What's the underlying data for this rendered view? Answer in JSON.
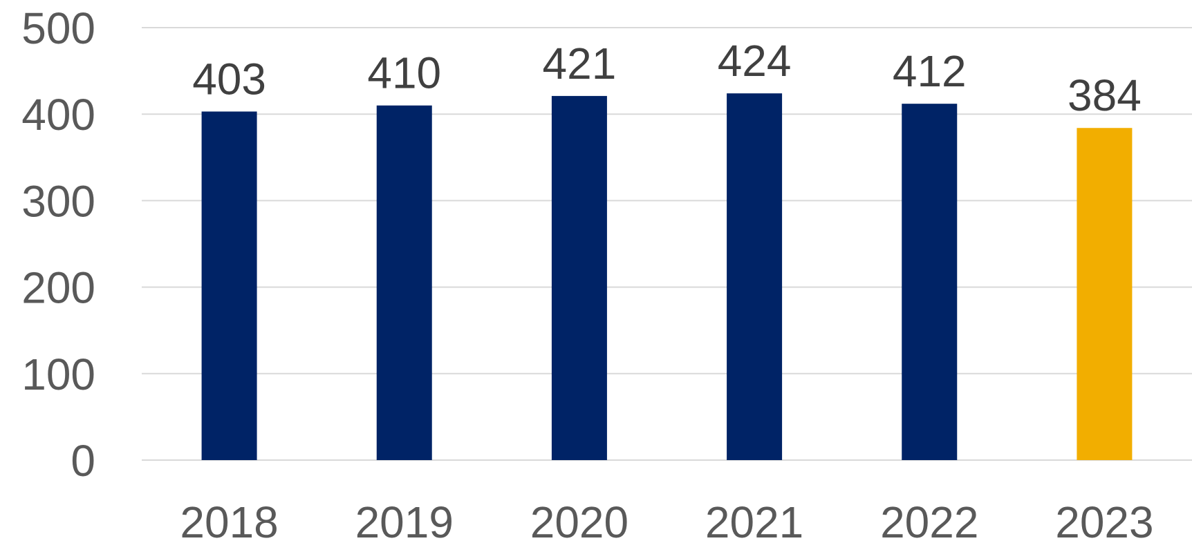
{
  "chart_data": {
    "type": "bar",
    "categories": [
      "2018",
      "2019",
      "2020",
      "2021",
      "2022",
      "2023"
    ],
    "values": [
      403,
      410,
      421,
      424,
      412,
      384
    ],
    "data_labels": [
      "403",
      "410",
      "421",
      "424",
      "412",
      "384"
    ],
    "y_ticks": [
      "0",
      "100",
      "200",
      "300",
      "400",
      "500"
    ],
    "ylim": [
      0,
      500
    ],
    "grid": true,
    "legend": "none",
    "colors": {
      "default_bar": "#002366",
      "highlight_bar": "#F2AE00",
      "highlight_category": "2023",
      "gridline": "#D9D9D9",
      "tick_text": "#595959",
      "label_text": "#404040"
    }
  }
}
